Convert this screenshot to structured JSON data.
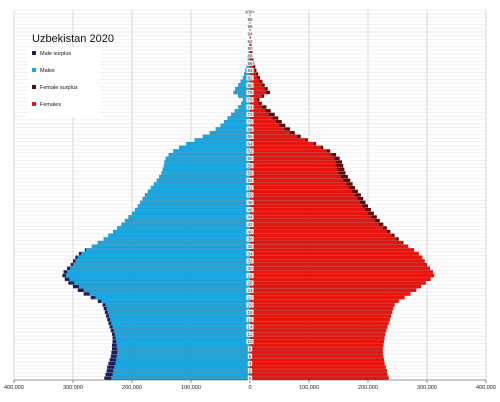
{
  "chart_data": {
    "type": "bar",
    "orientation": "horizontal-pyramid",
    "title": "Uzbekistan 2020",
    "x_range": [
      -400000,
      400000
    ],
    "x_ticks": [
      -400000,
      -300000,
      -200000,
      -100000,
      0,
      100000,
      200000,
      300000,
      400000
    ],
    "x_tick_labels": [
      "400,000",
      "300,000",
      "200,000",
      "100,000",
      "0",
      "100,000",
      "200,000",
      "300,000",
      "400,000"
    ],
    "age_labels": [
      "0",
      "2",
      "4",
      "6",
      "8",
      "10",
      "12",
      "14",
      "16",
      "18",
      "20",
      "22",
      "24",
      "26",
      "28",
      "30",
      "32",
      "34",
      "36",
      "38",
      "40",
      "42",
      "44",
      "46",
      "48",
      "50",
      "52",
      "54",
      "56",
      "58",
      "60",
      "62",
      "64",
      "66",
      "68",
      "70",
      "72",
      "74",
      "76",
      "78",
      "80",
      "82",
      "84",
      "86",
      "88",
      "90",
      "92",
      "94",
      "96",
      "98",
      "100+"
    ],
    "ages": [
      "0",
      "1",
      "2",
      "3",
      "4",
      "5",
      "6",
      "7",
      "8",
      "9",
      "10",
      "11",
      "12",
      "13",
      "14",
      "15",
      "16",
      "17",
      "18",
      "19",
      "20",
      "21",
      "22",
      "23",
      "24",
      "25",
      "26",
      "27",
      "28",
      "29",
      "30",
      "31",
      "32",
      "33",
      "34",
      "35",
      "36",
      "37",
      "38",
      "39",
      "40",
      "41",
      "42",
      "43",
      "44",
      "45",
      "46",
      "47",
      "48",
      "49",
      "50",
      "51",
      "52",
      "53",
      "54",
      "55",
      "56",
      "57",
      "58",
      "59",
      "60",
      "61",
      "62",
      "63",
      "64",
      "65",
      "66",
      "67",
      "68",
      "69",
      "70",
      "71",
      "72",
      "73",
      "74",
      "75",
      "76",
      "77",
      "78",
      "79",
      "80",
      "81",
      "82",
      "83",
      "84",
      "85",
      "86",
      "87",
      "88",
      "89",
      "90",
      "91",
      "92",
      "93",
      "94",
      "95",
      "96",
      "97",
      "98",
      "99",
      "100+"
    ],
    "males": [
      247000,
      245000,
      243000,
      242000,
      240000,
      238000,
      236000,
      235000,
      234000,
      234000,
      233000,
      233000,
      234000,
      236000,
      238000,
      240000,
      242000,
      244000,
      246000,
      248000,
      250000,
      258000,
      270000,
      282000,
      292000,
      300000,
      308000,
      314000,
      318000,
      316000,
      310000,
      304000,
      300000,
      296000,
      290000,
      280000,
      268000,
      258000,
      248000,
      240000,
      232000,
      225000,
      218000,
      212000,
      206000,
      200000,
      195000,
      190000,
      186000,
      182000,
      178000,
      173000,
      168000,
      163000,
      158000,
      154000,
      150000,
      148000,
      146000,
      145000,
      143000,
      138000,
      130000,
      120000,
      108000,
      94000,
      80000,
      68000,
      58000,
      50000,
      44000,
      38000,
      32000,
      26000,
      20000,
      15000,
      12000,
      20000,
      28000,
      25000,
      20000,
      16000,
      12000,
      10000,
      8000,
      6000,
      5000,
      4000,
      3000,
      2500,
      2000,
      1500,
      1000,
      800,
      600,
      400,
      300,
      200,
      150,
      100,
      100
    ],
    "females": [
      235000,
      233000,
      232000,
      230000,
      228000,
      227000,
      226000,
      225000,
      225000,
      226000,
      227000,
      228000,
      229000,
      231000,
      233000,
      235000,
      237000,
      239000,
      241000,
      243000,
      245000,
      252000,
      262000,
      272000,
      282000,
      290000,
      298000,
      306000,
      312000,
      310000,
      305000,
      300000,
      296000,
      292000,
      286000,
      278000,
      268000,
      260000,
      252000,
      245000,
      238000,
      232000,
      226000,
      220000,
      215000,
      210000,
      205000,
      200000,
      196000,
      192000,
      188000,
      183000,
      178000,
      174000,
      170000,
      166000,
      162000,
      160000,
      158000,
      156000,
      152000,
      146000,
      136000,
      124000,
      112000,
      98000,
      86000,
      76000,
      68000,
      60000,
      54000,
      48000,
      42000,
      35000,
      28000,
      20000,
      16000,
      24000,
      34000,
      30000,
      25000,
      21000,
      17000,
      14000,
      11000,
      9000,
      7000,
      6000,
      5000,
      4000,
      3200,
      2500,
      1800,
      1300,
      900,
      600,
      400,
      300,
      200,
      150,
      100
    ],
    "legend": [
      {
        "label": "Male surplus",
        "color": "#1a1f5c"
      },
      {
        "label": "Males",
        "color": "#19a7e2"
      },
      {
        "label": "Female surplus",
        "color": "#5e0b0b"
      },
      {
        "label": "Females",
        "color": "#e8150f"
      }
    ],
    "grid": true
  }
}
